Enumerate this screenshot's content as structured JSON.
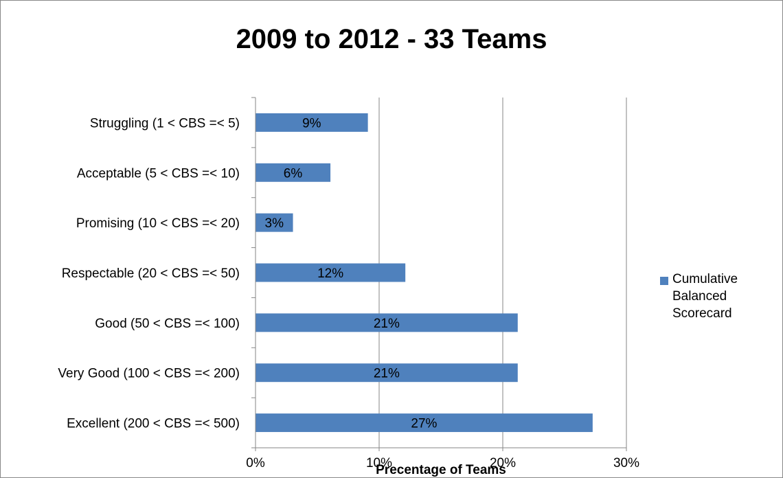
{
  "chart_data": {
    "type": "bar",
    "orientation": "horizontal",
    "title": "2009 to 2012 - 33 Teams",
    "xlabel": "Precentage of Teams",
    "ylabel": "",
    "categories": [
      "Struggling (1 < CBS =< 5)",
      "Acceptable (5 < CBS =< 10)",
      "Promising (10 < CBS =< 20)",
      "Respectable (20 < CBS =< 50)",
      "Good (50 < CBS =< 100)",
      "Very Good (100 < CBS =< 200)",
      "Excellent (200 < CBS =< 500)"
    ],
    "series": [
      {
        "name": "Cumulative Balanced Scorecard",
        "values": [
          0.0909,
          0.0606,
          0.0303,
          0.1212,
          0.2121,
          0.2121,
          0.2727
        ],
        "data_labels": [
          "9%",
          "6%",
          "3%",
          "12%",
          "21%",
          "21%",
          "27%"
        ],
        "color": "#4F81BD"
      }
    ],
    "xlim": [
      0,
      0.3
    ],
    "xticks": [
      0,
      0.1,
      0.2,
      0.3
    ],
    "xtick_labels": [
      "0%",
      "10%",
      "20%",
      "30%"
    ],
    "grid": true,
    "legend_position": "right"
  },
  "legend": {
    "label": "Cumulative\nBalanced\nScorecard",
    "color": "#4F81BD"
  }
}
